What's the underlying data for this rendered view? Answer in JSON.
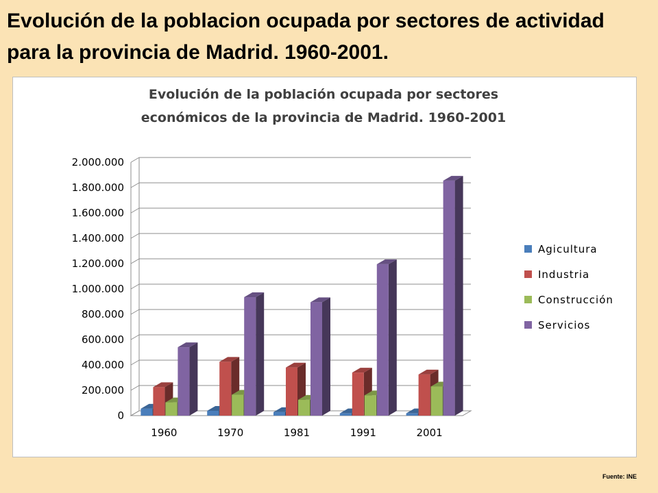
{
  "slide": {
    "title": "Evolución de la poblacion ocupada por sectores de actividad para la provincia de Madrid. 1960-2001.",
    "source": "Fuente: INE"
  },
  "chart_data": {
    "type": "bar",
    "title_lines": [
      "Evolución de la población ocupada por sectores",
      "económicos de la provincia de Madrid. 1960-2001"
    ],
    "categories": [
      "1960",
      "1970",
      "1981",
      "1991",
      "2001"
    ],
    "series": [
      {
        "name": "Agicultura",
        "values": [
          55000,
          38000,
          28000,
          18000,
          18000
        ],
        "color": "#4a7ebb"
      },
      {
        "name": "Industria",
        "values": [
          225000,
          425000,
          380000,
          340000,
          325000
        ],
        "color": "#c0504d"
      },
      {
        "name": "Construcción",
        "values": [
          105000,
          165000,
          125000,
          160000,
          230000
        ],
        "color": "#9bbb59"
      },
      {
        "name": "Servicios",
        "values": [
          540000,
          935000,
          895000,
          1195000,
          1855000
        ],
        "color": "#8064a2"
      }
    ],
    "ylim": [
      0,
      2000000
    ],
    "yticks": [
      0,
      200000,
      400000,
      600000,
      800000,
      1000000,
      1200000,
      1400000,
      1600000,
      1800000,
      2000000
    ],
    "ytick_labels": [
      "0",
      "200.000",
      "400.000",
      "600.000",
      "800.000",
      "1.000.000",
      "1.200.000",
      "1.400.000",
      "1.600.000",
      "1.800.000",
      "2.000.000"
    ],
    "grid": true,
    "legend_position": "right",
    "style": "3d-column"
  }
}
